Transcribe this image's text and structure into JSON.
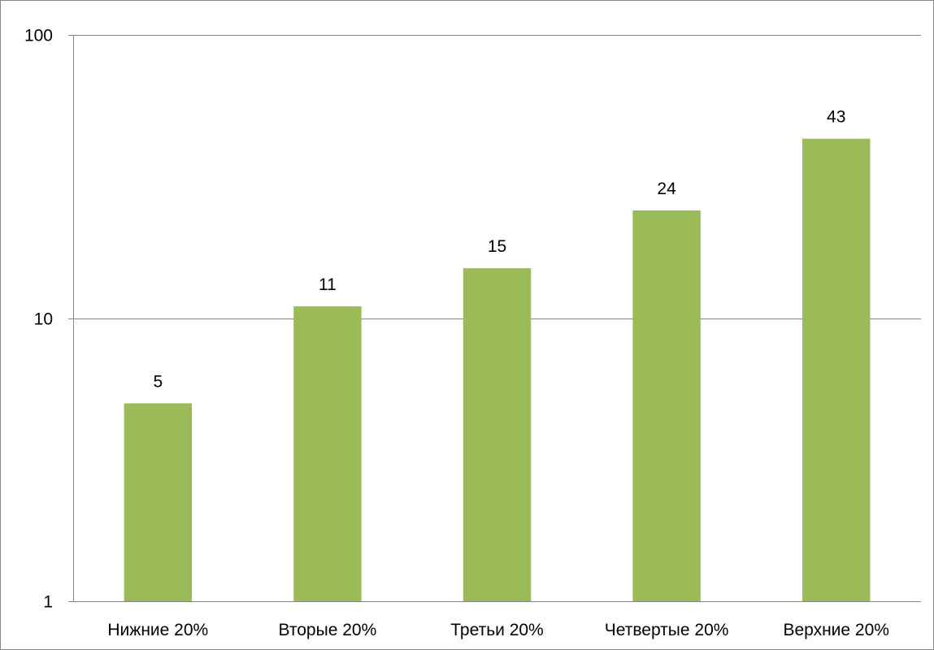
{
  "chart_data": {
    "type": "bar",
    "title": "",
    "xlabel": "",
    "ylabel": "",
    "y_scale": "log",
    "ylim": [
      1,
      100
    ],
    "y_ticks": [
      1,
      10,
      100
    ],
    "y_tick_labels": [
      "1",
      "10",
      "100"
    ],
    "grid": true,
    "legend": "none",
    "bar_color": "#9BBB59",
    "grid_color": "#868686",
    "categories": [
      "Нижние 20%",
      "Вторые 20%",
      "Третьи 20%",
      "Четвертые 20%",
      "Верхние 20%"
    ],
    "values": [
      5,
      11,
      15,
      24,
      43
    ],
    "data_labels": [
      "5",
      "11",
      "15",
      "24",
      "43"
    ]
  }
}
